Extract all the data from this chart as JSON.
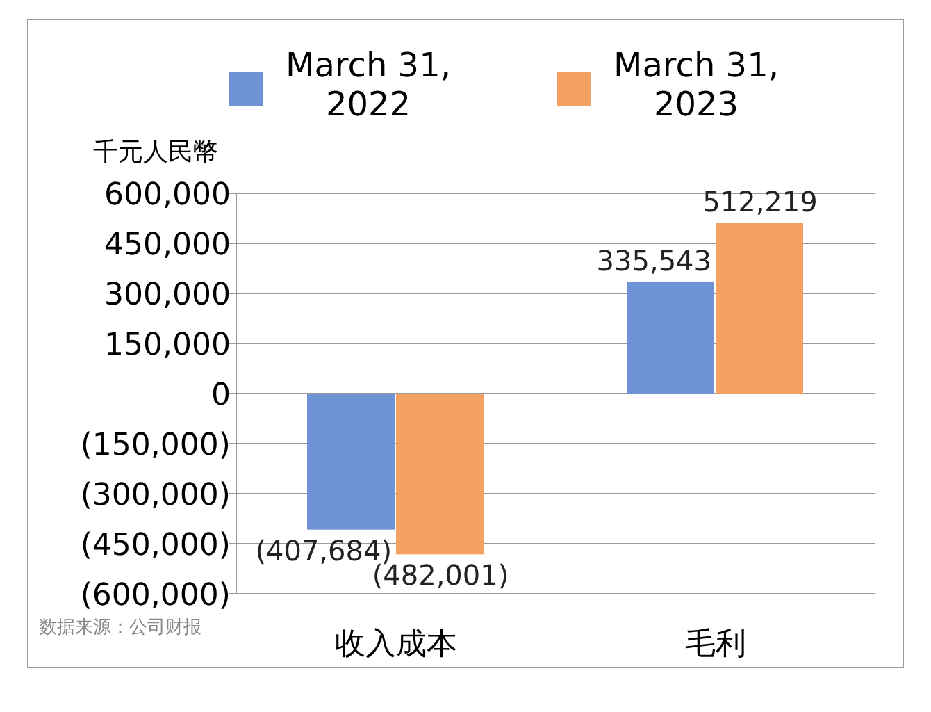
{
  "chart_data": {
    "type": "bar",
    "ylabel": "千元人民幣",
    "categories": [
      "收入成本",
      "毛利"
    ],
    "series": [
      {
        "name": "March 31, 2022",
        "color": "#6f93d6",
        "values": [
          -407684,
          335543
        ],
        "value_labels": [
          "(407,684)",
          "335,543"
        ]
      },
      {
        "name": "March 31, 2023",
        "color": "#f4a264",
        "values": [
          -482001,
          512219
        ],
        "value_labels": [
          "(482,001)",
          "512,219"
        ]
      }
    ],
    "ylim": [
      -600000,
      600000
    ],
    "yticks": [
      {
        "value": -600000,
        "label": "(600,000)"
      },
      {
        "value": -450000,
        "label": "(450,000)"
      },
      {
        "value": -300000,
        "label": "(300,000)"
      },
      {
        "value": -150000,
        "label": "(150,000)"
      },
      0,
      {
        "value": 150000,
        "label": "150,000"
      },
      {
        "value": 300000,
        "label": "300,000"
      },
      {
        "value": 450000,
        "label": "450,000"
      },
      {
        "value": 600000,
        "label": "600,000"
      }
    ],
    "grid": "y",
    "legend": "top",
    "annotations": [
      "数据来源：公司财报"
    ]
  }
}
